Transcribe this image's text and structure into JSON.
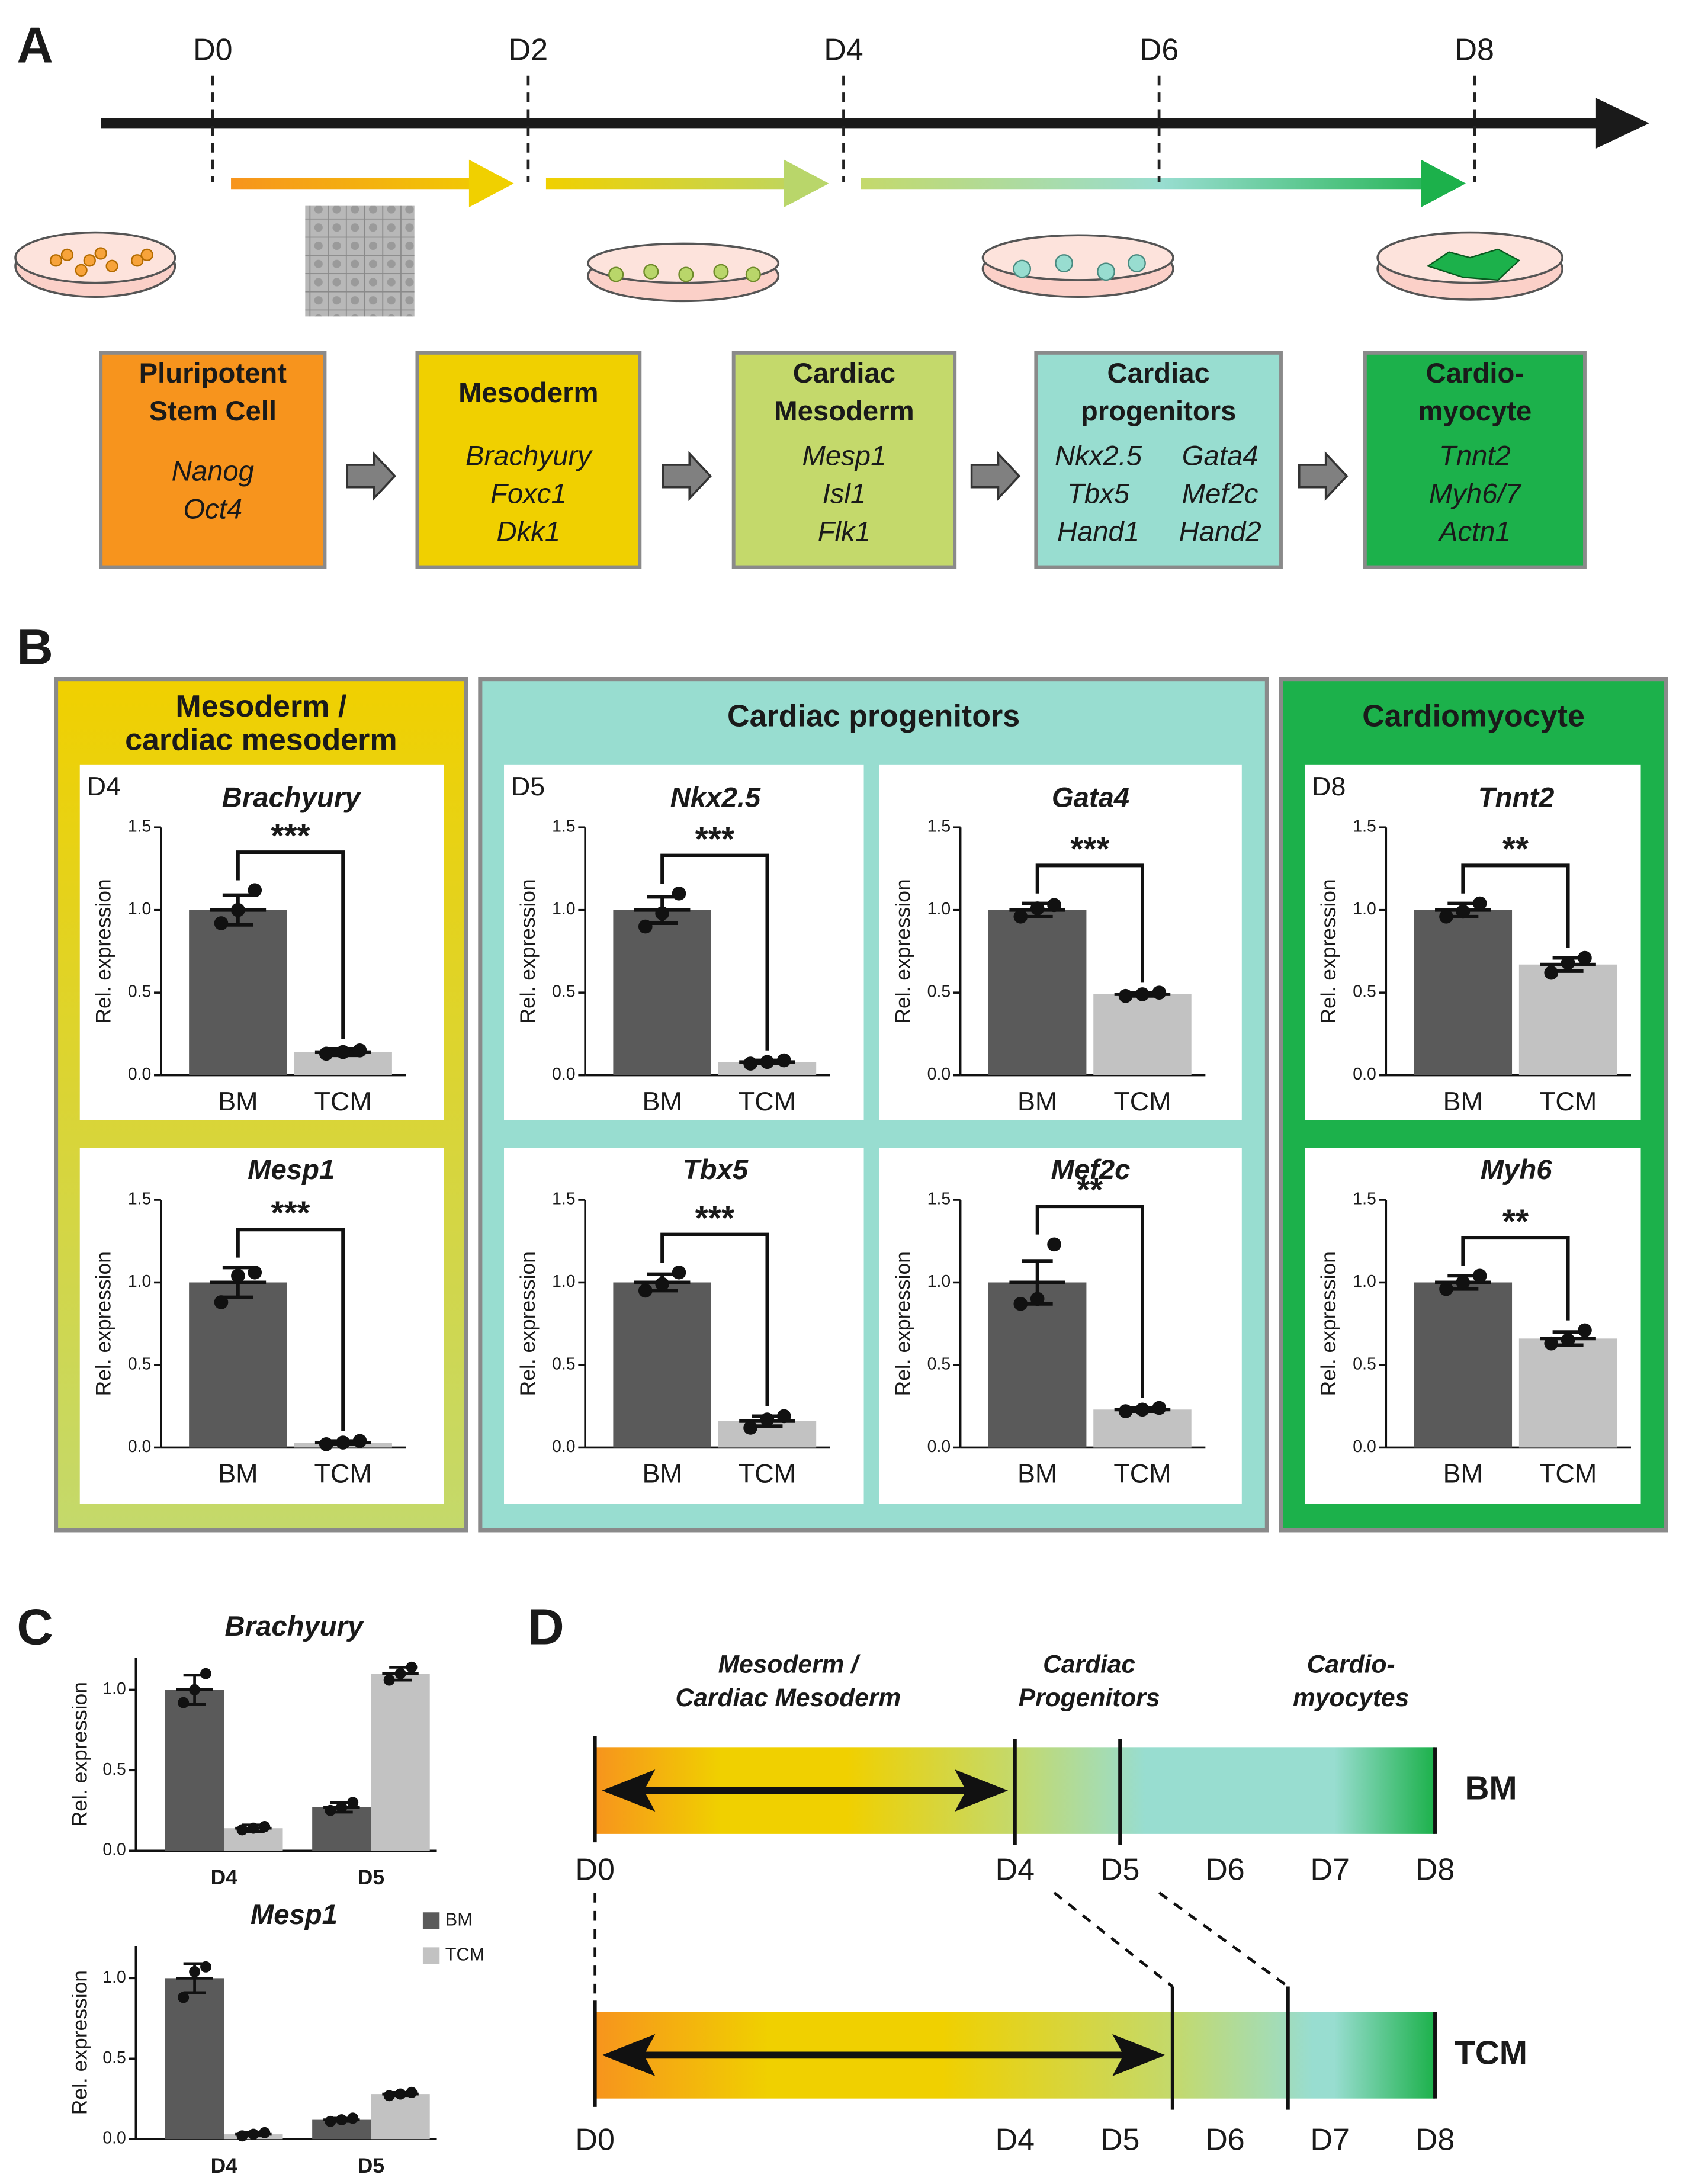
{
  "panel_a": {
    "label": "A",
    "days": [
      "D0",
      "D2",
      "D4",
      "D6",
      "D8"
    ],
    "stages": [
      {
        "title": [
          "Pluripotent",
          "Stem Cell"
        ],
        "genes": [
          "Nanog",
          "Oct4"
        ],
        "color": "#f7941d"
      },
      {
        "title": [
          "Mesoderm"
        ],
        "genes": [
          "Brachyury",
          "Foxc1",
          "Dkk1"
        ],
        "color": "#f0d000"
      },
      {
        "title": [
          "Cardiac",
          "Mesoderm"
        ],
        "genes": [
          "Mesp1",
          "Isl1",
          "Flk1"
        ],
        "color": "#c4d96b"
      },
      {
        "title": [
          "Cardiac",
          "progenitors"
        ],
        "genes": [
          "Nkx2.5",
          "Gata4",
          "Tbx5",
          "Mef2c",
          "Hand1",
          "Hand2"
        ],
        "color": "#98ddd0"
      },
      {
        "title": [
          "Cardio-",
          "myocyte"
        ],
        "genes": [
          "Tnnt2",
          "Myh6/7",
          "Actn1"
        ],
        "color": "#1cb14b"
      }
    ]
  },
  "panel_b": {
    "label": "B",
    "groups": [
      {
        "title": [
          "Mesoderm /",
          "cardiac mesoderm"
        ],
        "day": "D4",
        "colors": [
          "#f0d000",
          "#c4d96b"
        ]
      },
      {
        "title": [
          "Cardiac progenitors"
        ],
        "day": "D5",
        "colors": [
          "#98ddd0"
        ]
      },
      {
        "title": [
          "Cardiomyocyte"
        ],
        "day": "D8",
        "colors": [
          "#1cb14b"
        ]
      }
    ]
  },
  "chart_data": [
    {
      "type": "bar",
      "title": "Brachyury",
      "categories": [
        "BM",
        "TCM"
      ],
      "values": [
        1.0,
        0.14
      ],
      "errors": [
        0.09,
        0.02
      ],
      "points": [
        [
          0.92,
          1.0,
          1.12
        ],
        [
          0.13,
          0.14,
          0.15
        ]
      ],
      "colors": [
        "#5a5a5a",
        "#c2c2c2"
      ],
      "significance": "***",
      "ylabel": "Rel. expression",
      "ylim": [
        0,
        1.5
      ],
      "yticks": [
        {
          "value": 0,
          "label": "0.0"
        },
        0.5,
        {
          "value": 1,
          "label": "1.0"
        },
        1.5
      ]
    },
    {
      "type": "bar",
      "title": "Mesp1",
      "categories": [
        "BM",
        "TCM"
      ],
      "values": [
        1.0,
        0.03
      ],
      "errors": [
        0.09,
        0.01
      ],
      "points": [
        [
          0.88,
          1.04,
          1.06
        ],
        [
          0.02,
          0.03,
          0.04
        ]
      ],
      "colors": [
        "#5a5a5a",
        "#c2c2c2"
      ],
      "significance": "***",
      "ylabel": "Rel. expression",
      "ylim": [
        0,
        1.5
      ],
      "yticks": [
        {
          "value": 0,
          "label": "0.0"
        },
        0.5,
        {
          "value": 1,
          "label": "1.0"
        },
        1.5
      ]
    },
    {
      "type": "bar",
      "title": "Nkx2.5",
      "categories": [
        "BM",
        "TCM"
      ],
      "values": [
        1.0,
        0.08
      ],
      "errors": [
        0.08,
        0.01
      ],
      "points": [
        [
          0.9,
          0.98,
          1.1
        ],
        [
          0.07,
          0.08,
          0.09
        ]
      ],
      "colors": [
        "#5a5a5a",
        "#c2c2c2"
      ],
      "significance": "***",
      "ylabel": "Rel. expression",
      "ylim": [
        0,
        1.5
      ],
      "yticks": [
        {
          "value": 0,
          "label": "0.0"
        },
        0.5,
        {
          "value": 1,
          "label": "1.0"
        },
        1.5
      ]
    },
    {
      "type": "bar",
      "title": "Gata4",
      "categories": [
        "BM",
        "TCM"
      ],
      "values": [
        1.0,
        0.49
      ],
      "errors": [
        0.04,
        0.01
      ],
      "points": [
        [
          0.96,
          1.01,
          1.03
        ],
        [
          0.48,
          0.49,
          0.5
        ]
      ],
      "colors": [
        "#5a5a5a",
        "#c2c2c2"
      ],
      "significance": "***",
      "ylabel": "Rel. expression",
      "ylim": [
        0,
        1.5
      ],
      "yticks": [
        {
          "value": 0,
          "label": "0.0"
        },
        0.5,
        {
          "value": 1,
          "label": "1.0"
        },
        1.5
      ]
    },
    {
      "type": "bar",
      "title": "Tbx5",
      "categories": [
        "BM",
        "TCM"
      ],
      "values": [
        1.0,
        0.16
      ],
      "errors": [
        0.05,
        0.03
      ],
      "points": [
        [
          0.95,
          0.99,
          1.06
        ],
        [
          0.12,
          0.17,
          0.19
        ]
      ],
      "colors": [
        "#5a5a5a",
        "#c2c2c2"
      ],
      "significance": "***",
      "ylabel": "Rel. expression",
      "ylim": [
        0,
        1.5
      ],
      "yticks": [
        {
          "value": 0,
          "label": "0.0"
        },
        0.5,
        {
          "value": 1,
          "label": "1.0"
        },
        1.5
      ]
    },
    {
      "type": "bar",
      "title": "Mef2c",
      "categories": [
        "BM",
        "TCM"
      ],
      "values": [
        1.0,
        0.23
      ],
      "errors": [
        0.13,
        0.01
      ],
      "points": [
        [
          0.87,
          0.9,
          1.23
        ],
        [
          0.22,
          0.23,
          0.24
        ]
      ],
      "colors": [
        "#5a5a5a",
        "#c2c2c2"
      ],
      "significance": "**",
      "ylabel": "Rel. expression",
      "ylim": [
        0,
        1.5
      ],
      "yticks": [
        {
          "value": 0,
          "label": "0.0"
        },
        0.5,
        {
          "value": 1,
          "label": "1.0"
        },
        1.5
      ]
    },
    {
      "type": "bar",
      "title": "Tnnt2",
      "categories": [
        "BM",
        "TCM"
      ],
      "values": [
        1.0,
        0.67
      ],
      "errors": [
        0.04,
        0.04
      ],
      "points": [
        [
          0.96,
          0.99,
          1.04
        ],
        [
          0.62,
          0.68,
          0.71
        ]
      ],
      "colors": [
        "#5a5a5a",
        "#c2c2c2"
      ],
      "significance": "**",
      "ylabel": "Rel. expression",
      "ylim": [
        0,
        1.5
      ],
      "yticks": [
        {
          "value": 0,
          "label": "0.0"
        },
        0.5,
        {
          "value": 1,
          "label": "1.0"
        },
        1.5
      ]
    },
    {
      "type": "bar",
      "title": "Myh6",
      "categories": [
        "BM",
        "TCM"
      ],
      "values": [
        1.0,
        0.66
      ],
      "errors": [
        0.04,
        0.04
      ],
      "points": [
        [
          0.96,
          1.0,
          1.04
        ],
        [
          0.63,
          0.65,
          0.71
        ]
      ],
      "colors": [
        "#5a5a5a",
        "#c2c2c2"
      ],
      "significance": "**",
      "ylabel": "Rel. expression",
      "ylim": [
        0,
        1.5
      ],
      "yticks": [
        {
          "value": 0,
          "label": "0.0"
        },
        0.5,
        {
          "value": 1,
          "label": "1.0"
        },
        1.5
      ]
    },
    {
      "type": "grouped_bar",
      "title": "Brachyury",
      "categories": [
        "D4",
        "D5"
      ],
      "series": [
        {
          "name": "BM",
          "color": "#5a5a5a",
          "values": [
            1.0,
            0.27
          ],
          "errors": [
            0.09,
            0.03
          ],
          "points": [
            [
              0.92,
              1.0,
              1.1
            ],
            [
              0.25,
              0.27,
              0.3
            ]
          ]
        },
        {
          "name": "TCM",
          "color": "#c2c2c2",
          "values": [
            0.14,
            1.1
          ],
          "errors": [
            0.02,
            0.04
          ],
          "points": [
            [
              0.13,
              0.14,
              0.15
            ],
            [
              1.06,
              1.1,
              1.14
            ]
          ]
        }
      ],
      "ylabel": "Rel. expression",
      "ylim": [
        0,
        1.2
      ],
      "yticks": [
        {
          "value": 0,
          "label": "0.0"
        },
        0.5,
        {
          "value": 1,
          "label": "1.0"
        }
      ],
      "legend": false
    },
    {
      "type": "grouped_bar",
      "title": "Mesp1",
      "categories": [
        "D4",
        "D5"
      ],
      "series": [
        {
          "name": "BM",
          "color": "#5a5a5a",
          "values": [
            1.0,
            0.12
          ],
          "errors": [
            0.09,
            0.01
          ],
          "points": [
            [
              0.88,
              1.04,
              1.07
            ],
            [
              0.11,
              0.12,
              0.13
            ]
          ]
        },
        {
          "name": "TCM",
          "color": "#c2c2c2",
          "values": [
            0.03,
            0.28
          ],
          "errors": [
            0.01,
            0.01
          ],
          "points": [
            [
              0.02,
              0.03,
              0.04
            ],
            [
              0.27,
              0.28,
              0.29
            ]
          ]
        }
      ],
      "ylabel": "Rel. expression",
      "ylim": [
        0,
        1.2
      ],
      "yticks": [
        {
          "value": 0,
          "label": "0.0"
        },
        0.5,
        {
          "value": 1,
          "label": "1.0"
        }
      ],
      "legend": true
    }
  ],
  "panel_c": {
    "label": "C"
  },
  "panel_d": {
    "label": "D",
    "stages": [
      [
        "Mesoderm /",
        "Cardiac Mesoderm"
      ],
      [
        "Cardiac",
        "Progenitors"
      ],
      [
        "Cardio-",
        "myocytes"
      ]
    ],
    "xlim": [
      0,
      8
    ],
    "xticks": [
      {
        "value": 0,
        "label": "D0"
      },
      {
        "value": 4,
        "label": "D4"
      },
      {
        "value": 5,
        "label": "D5"
      },
      {
        "value": 6,
        "label": "D6"
      },
      {
        "value": 7,
        "label": "D7"
      },
      {
        "value": 8,
        "label": "D8"
      }
    ],
    "rows": [
      {
        "name": "BM",
        "boundaries": [
          4,
          5
        ]
      },
      {
        "name": "TCM",
        "boundaries": [
          5.5,
          6.6
        ]
      }
    ]
  }
}
